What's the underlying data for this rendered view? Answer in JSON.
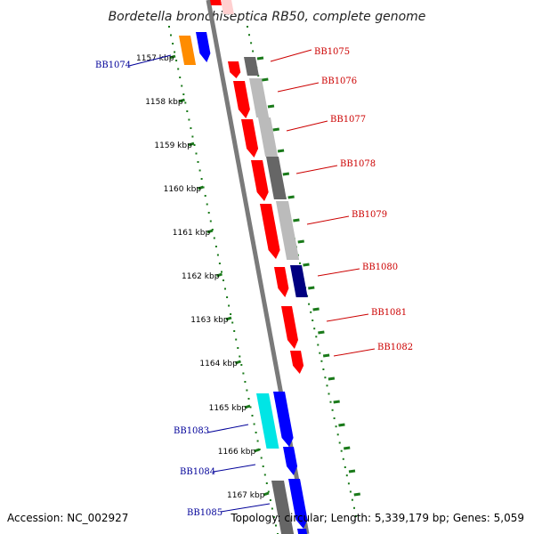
{
  "title": "Bordetella bronchiseptica RB50, complete genome",
  "footer": {
    "accession": "Accession: NC_002927",
    "summary": "Topology: circular; Length: 5,339,179 bp; Genes: 5,059"
  },
  "colors": {
    "backbone": "#7a7a7a",
    "scale_ticks": "#1a7a1a",
    "right_labels": "#cc0000",
    "left_labels": "#000099",
    "gene_red": "#ff0000",
    "gene_blue": "#0000ff",
    "gene_navy": "#000080",
    "gene_cyan": "#00e5e5",
    "gene_orange": "#ff8c00",
    "gene_gray_dark": "#666666",
    "gene_gray_light": "#bbbbbb"
  },
  "scale": {
    "unit": "kbp",
    "ticks": [
      "1157 kbp",
      "1158 kbp",
      "1159 kbp",
      "1160 kbp",
      "1161 kbp",
      "1162 kbp",
      "1163 kbp",
      "1164 kbp",
      "1165 kbp",
      "1166 kbp",
      "1167 kbp"
    ]
  },
  "gene_labels_right": [
    "BB1075",
    "BB1076",
    "BB1077",
    "BB1078",
    "BB1079",
    "BB1080",
    "BB1081",
    "BB1082"
  ],
  "gene_labels_left": [
    "BB1074",
    "BB1083",
    "BB1084",
    "BB1085"
  ]
}
